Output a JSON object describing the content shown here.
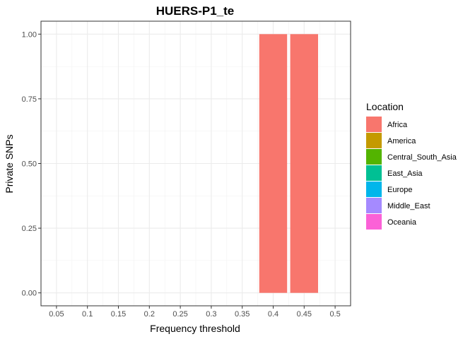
{
  "chart_data": {
    "type": "bar",
    "title": "HUERS-P1_te",
    "xlabel": "Frequency threshold",
    "ylabel": "Private SNPs",
    "x_ticks": [
      "0.05",
      "0.1",
      "0.15",
      "0.2",
      "0.25",
      "0.3",
      "0.35",
      "0.4",
      "0.45",
      "0.5"
    ],
    "y_ticks": [
      "0.00",
      "0.25",
      "0.50",
      "0.75",
      "1.00"
    ],
    "xlim": [
      0.025,
      0.525
    ],
    "ylim": [
      -0.05,
      1.05
    ],
    "grid": true,
    "legend_position": "right",
    "legend_title": "Location",
    "series": [
      {
        "name": "Africa",
        "color": "#F8766D",
        "points": [
          {
            "x": 0.4,
            "y": 1
          },
          {
            "x": 0.45,
            "y": 1
          }
        ]
      },
      {
        "name": "America",
        "color": "#C49A00",
        "points": []
      },
      {
        "name": "Central_South_Asia",
        "color": "#53B400",
        "points": []
      },
      {
        "name": "East_Asia",
        "color": "#00C094",
        "points": []
      },
      {
        "name": "Europe",
        "color": "#00B6EB",
        "points": []
      },
      {
        "name": "Middle_East",
        "color": "#A58AFF",
        "points": []
      },
      {
        "name": "Oceania",
        "color": "#FB61D7",
        "points": []
      }
    ]
  }
}
